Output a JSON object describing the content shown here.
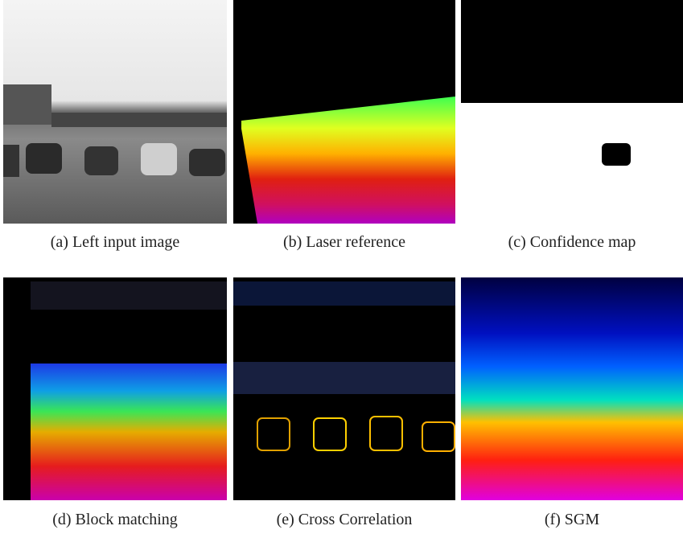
{
  "panels": [
    {
      "caption": "(a) Left input image"
    },
    {
      "caption": "(b) Laser reference"
    },
    {
      "caption": "(c) Confidence map"
    },
    {
      "caption": "(d) Block matching"
    },
    {
      "caption": "(e) Cross Correlation"
    },
    {
      "caption": "(f) SGM"
    }
  ]
}
